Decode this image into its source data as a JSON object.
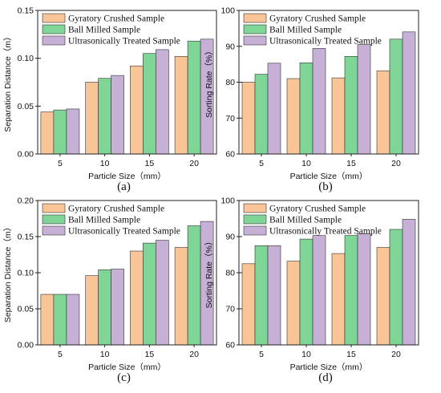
{
  "colors": {
    "Gyratory Crushed Sample": "#f9c496",
    "Ball Milled Sample": "#7ed596",
    "Ultrasonically Treated Sample": "#c6b0d6",
    "edge": "#333333"
  },
  "chart_data": [
    {
      "type": "bar",
      "panel_label": "(a)",
      "categories": [
        "5",
        "10",
        "15",
        "20"
      ],
      "xlabel": "Particle Size（mm）",
      "ylabel": "Separation Distance（m）",
      "ylim": [
        0.0,
        0.15
      ],
      "yticks": [
        "0.00",
        "0.05",
        "0.10",
        "0.15"
      ],
      "legend": "top-left",
      "grid": false,
      "series": [
        {
          "name": "Gyratory Crushed Sample",
          "values": [
            0.044,
            0.075,
            0.092,
            0.102
          ]
        },
        {
          "name": "Ball Milled Sample",
          "values": [
            0.046,
            0.079,
            0.105,
            0.118
          ]
        },
        {
          "name": "Ultrasonically Treated Sample",
          "values": [
            0.047,
            0.082,
            0.109,
            0.12
          ]
        }
      ]
    },
    {
      "type": "bar",
      "panel_label": "(b)",
      "categories": [
        "5",
        "10",
        "15",
        "20"
      ],
      "xlabel": "Particle Size（mm）",
      "ylabel": "Sorting Rate（%）",
      "ylim": [
        60,
        100
      ],
      "yticks": [
        "60",
        "70",
        "80",
        "90",
        "100"
      ],
      "legend": "top-left",
      "grid": false,
      "series": [
        {
          "name": "Gyratory Crushed Sample",
          "values": [
            80.0,
            81.0,
            81.2,
            83.2
          ]
        },
        {
          "name": "Ball Milled Sample",
          "values": [
            82.2,
            85.4,
            87.2,
            92.0
          ]
        },
        {
          "name": "Ultrasonically Treated Sample",
          "values": [
            85.3,
            89.4,
            90.5,
            94.0
          ]
        }
      ]
    },
    {
      "type": "bar",
      "panel_label": "(c)",
      "categories": [
        "5",
        "10",
        "15",
        "20"
      ],
      "xlabel": "Particle Size（mm）",
      "ylabel": "Separation Distance（m）",
      "ylim": [
        0.0,
        0.2
      ],
      "yticks": [
        "0.00",
        "0.05",
        "0.10",
        "0.15",
        "0.20"
      ],
      "legend": "top-left",
      "grid": false,
      "series": [
        {
          "name": "Gyratory Crushed Sample",
          "values": [
            0.07,
            0.096,
            0.13,
            0.135
          ]
        },
        {
          "name": "Ball Milled Sample",
          "values": [
            0.07,
            0.104,
            0.141,
            0.165
          ]
        },
        {
          "name": "Ultrasonically Treated Sample",
          "values": [
            0.07,
            0.105,
            0.145,
            0.171
          ]
        }
      ]
    },
    {
      "type": "bar",
      "panel_label": "(d)",
      "categories": [
        "5",
        "10",
        "15",
        "20"
      ],
      "xlabel": "Particle Size（mm）",
      "ylabel": "Sorting Rate（%）",
      "ylim": [
        60,
        100
      ],
      "yticks": [
        "60",
        "70",
        "80",
        "90",
        "100"
      ],
      "legend": "top-left",
      "grid": false,
      "series": [
        {
          "name": "Gyratory Crushed Sample",
          "values": [
            82.5,
            83.2,
            85.3,
            87.0
          ]
        },
        {
          "name": "Ball Milled Sample",
          "values": [
            87.5,
            89.3,
            90.3,
            92.0
          ]
        },
        {
          "name": "Ultrasonically Treated Sample",
          "values": [
            87.5,
            90.3,
            90.8,
            94.8
          ]
        }
      ]
    }
  ]
}
